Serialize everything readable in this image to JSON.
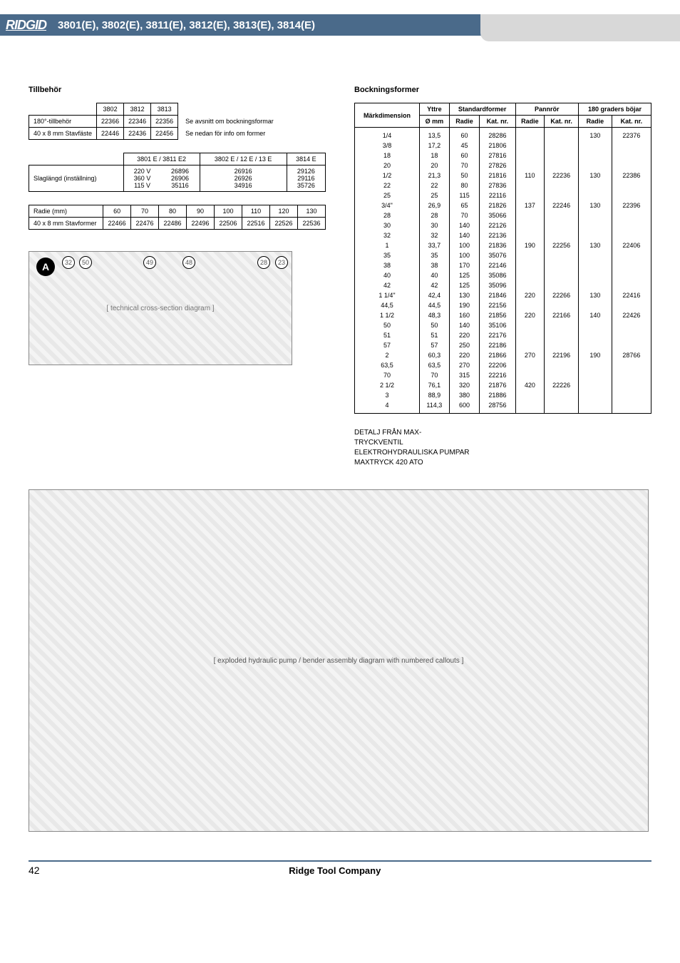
{
  "header": {
    "logo": "RIDGID",
    "title": "3801(E), 3802(E), 3811(E), 3812(E), 3813(E), 3814(E)"
  },
  "left": {
    "tillbehor_title": "Tillbehör",
    "table1": {
      "cols": [
        "3802",
        "3812",
        "3813"
      ],
      "rows": [
        {
          "label": "180°-tillbehör",
          "vals": [
            "22366",
            "22346",
            "22356"
          ],
          "note": "Se avsnitt om bockningsformar"
        },
        {
          "label": "40 x 8 mm Stavfäste",
          "vals": [
            "22446",
            "22436",
            "22456"
          ],
          "note": "Se nedan för info om former"
        }
      ]
    },
    "table2": {
      "cols": [
        "3801 E / 3811 E2",
        "3802 E / 12 E / 13 E",
        "3814 E"
      ],
      "row_label": "Slaglängd (inställning)",
      "col1": [
        "220 V",
        "360 V",
        "115 V"
      ],
      "col2": [
        "26896",
        "26906",
        "35116"
      ],
      "col3": [
        "26916",
        "26926",
        "34916"
      ],
      "col4": [
        "29126",
        "29116",
        "35726"
      ]
    },
    "table3": {
      "radii_label": "Radie (mm)",
      "radii": [
        "60",
        "70",
        "80",
        "90",
        "100",
        "110",
        "120",
        "130"
      ],
      "row_label": "40 x 8 mm Stavformer",
      "vals": [
        "22466",
        "22476",
        "22486",
        "22496",
        "22506",
        "22516",
        "22526",
        "22536"
      ]
    },
    "diagramA_callouts": [
      "32",
      "50",
      "49",
      "48",
      "28",
      "23"
    ]
  },
  "right": {
    "bock_title": "Bockningsformer",
    "headers": {
      "mark": "Märkdimension",
      "yttre": "Yttre",
      "yttre_sub": "Ø mm",
      "std": "Standardformer",
      "pann": "Pannrör",
      "g180": "180 graders böjar",
      "radie": "Radie",
      "kat": "Kat. nr."
    },
    "rows": [
      [
        "1/4",
        "13,5",
        "60",
        "28286",
        "",
        "",
        "130",
        "22376"
      ],
      [
        "3/8",
        "17,2",
        "45",
        "21806",
        "",
        "",
        "",
        ""
      ],
      [
        "18",
        "18",
        "60",
        "27816",
        "",
        "",
        "",
        ""
      ],
      [
        "20",
        "20",
        "70",
        "27826",
        "",
        "",
        "",
        ""
      ],
      [
        "1/2",
        "21,3",
        "50",
        "21816",
        "110",
        "22236",
        "130",
        "22386"
      ],
      [
        "22",
        "22",
        "80",
        "27836",
        "",
        "",
        "",
        ""
      ],
      [
        "25",
        "25",
        "115",
        "22116",
        "",
        "",
        "",
        ""
      ],
      [
        "3/4\"",
        "26,9",
        "65",
        "21826",
        "137",
        "22246",
        "130",
        "22396"
      ],
      [
        "28",
        "28",
        "70",
        "35066",
        "",
        "",
        "",
        ""
      ],
      [
        "30",
        "30",
        "140",
        "22126",
        "",
        "",
        "",
        ""
      ],
      [
        "32",
        "32",
        "140",
        "22136",
        "",
        "",
        "",
        ""
      ],
      [
        "1",
        "33,7",
        "100",
        "21836",
        "190",
        "22256",
        "130",
        "22406"
      ],
      [
        "35",
        "35",
        "100",
        "35076",
        "",
        "",
        "",
        ""
      ],
      [
        "38",
        "38",
        "170",
        "22146",
        "",
        "",
        "",
        ""
      ],
      [
        "40",
        "40",
        "125",
        "35086",
        "",
        "",
        "",
        ""
      ],
      [
        "42",
        "42",
        "125",
        "35096",
        "",
        "",
        "",
        ""
      ],
      [
        "1 1/4\"",
        "42,4",
        "130",
        "21846",
        "220",
        "22266",
        "130",
        "22416"
      ],
      [
        "44,5",
        "44,5",
        "190",
        "22156",
        "",
        "",
        "",
        ""
      ],
      [
        "1 1/2",
        "48,3",
        "160",
        "21856",
        "220",
        "22166",
        "140",
        "22426"
      ],
      [
        "50",
        "50",
        "140",
        "35106",
        "",
        "",
        "",
        ""
      ],
      [
        "51",
        "51",
        "220",
        "22176",
        "",
        "",
        "",
        ""
      ],
      [
        "57",
        "57",
        "250",
        "22186",
        "",
        "",
        "",
        ""
      ],
      [
        "2",
        "60,3",
        "220",
        "21866",
        "270",
        "22196",
        "190",
        "28766"
      ],
      [
        "63,5",
        "63,5",
        "270",
        "22206",
        "",
        "",
        "",
        ""
      ],
      [
        "70",
        "70",
        "315",
        "22216",
        "",
        "",
        "",
        ""
      ],
      [
        "2 1/2",
        "76,1",
        "320",
        "21876",
        "420",
        "22226",
        "",
        ""
      ],
      [
        "3",
        "88,9",
        "380",
        "21886",
        "",
        "",
        "",
        ""
      ],
      [
        "4",
        "114,3",
        "600",
        "28756",
        "",
        "",
        "",
        ""
      ]
    ],
    "detail_lines": [
      "DETALJ FRÅN MAX-",
      "TRYCKVENTIL",
      "ELEKTROHYDRAULISKA PUMPAR",
      "",
      "MAXTRYCK 420 ATO"
    ]
  },
  "footer": {
    "page": "42",
    "center": "Ridge Tool Company"
  }
}
